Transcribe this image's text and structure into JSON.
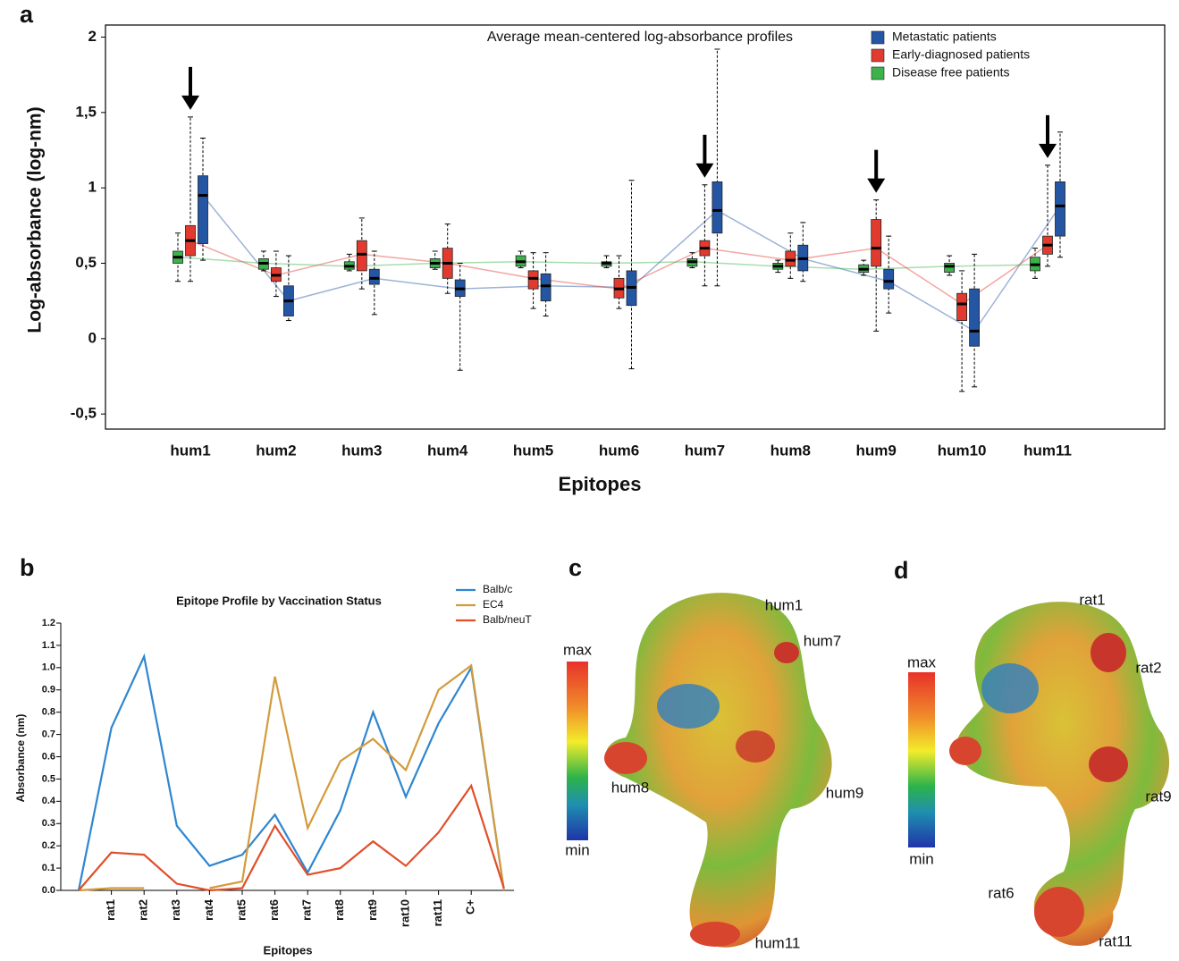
{
  "chart_data": [
    {
      "panel": "a",
      "type": "box",
      "title": "Average mean-centered log-absorbance profiles",
      "ylabel": "Log-absorbance (log-nm)",
      "xlabel": "Epitopes",
      "categories": [
        "hum1",
        "hum2",
        "hum3",
        "hum4",
        "hum5",
        "hum6",
        "hum7",
        "hum8",
        "hum9",
        "hum10",
        "hum11"
      ],
      "series": [
        {
          "name": "Metastatic patients",
          "color": "#2456a4",
          "values": [
            [
              0.52,
              0.63,
              0.95,
              1.08,
              1.33
            ],
            [
              0.12,
              0.15,
              0.25,
              0.35,
              0.55
            ],
            [
              0.16,
              0.36,
              0.4,
              0.46,
              0.58
            ],
            [
              -0.21,
              0.28,
              0.33,
              0.39,
              0.5
            ],
            [
              0.15,
              0.25,
              0.35,
              0.43,
              0.57
            ],
            [
              -0.2,
              0.22,
              0.34,
              0.45,
              1.05
            ],
            [
              0.35,
              0.7,
              0.85,
              1.04,
              1.92
            ],
            [
              0.38,
              0.45,
              0.53,
              0.62,
              0.77
            ],
            [
              0.17,
              0.33,
              0.38,
              0.46,
              0.68
            ],
            [
              -0.32,
              -0.05,
              0.05,
              0.33,
              0.56
            ],
            [
              0.54,
              0.68,
              0.88,
              1.04,
              1.37
            ]
          ]
        },
        {
          "name": "Early-diagnosed patients",
          "color": "#e23a2e",
          "values": [
            [
              0.38,
              0.55,
              0.65,
              0.75,
              1.47
            ],
            [
              0.28,
              0.38,
              0.42,
              0.47,
              0.58
            ],
            [
              0.33,
              0.45,
              0.56,
              0.65,
              0.8
            ],
            [
              0.3,
              0.4,
              0.5,
              0.6,
              0.76
            ],
            [
              0.2,
              0.33,
              0.4,
              0.45,
              0.57
            ],
            [
              0.2,
              0.27,
              0.33,
              0.4,
              0.55
            ],
            [
              0.35,
              0.55,
              0.6,
              0.65,
              1.02
            ],
            [
              0.4,
              0.48,
              0.52,
              0.58,
              0.7
            ],
            [
              0.05,
              0.48,
              0.6,
              0.79,
              0.92
            ],
            [
              -0.35,
              0.12,
              0.23,
              0.3,
              0.45
            ],
            [
              0.48,
              0.56,
              0.62,
              0.68,
              1.15
            ]
          ]
        },
        {
          "name": "Disease free patients",
          "color": "#3bb34a",
          "values": [
            [
              0.38,
              0.5,
              0.54,
              0.58,
              0.7
            ],
            [
              0.45,
              0.46,
              0.5,
              0.53,
              0.58
            ],
            [
              0.45,
              0.46,
              0.48,
              0.51,
              0.56
            ],
            [
              0.46,
              0.47,
              0.5,
              0.53,
              0.58
            ],
            [
              0.47,
              0.48,
              0.51,
              0.55,
              0.58
            ],
            [
              0.47,
              0.48,
              0.5,
              0.51,
              0.55
            ],
            [
              0.47,
              0.48,
              0.51,
              0.53,
              0.57
            ],
            [
              0.44,
              0.46,
              0.48,
              0.5,
              0.52
            ],
            [
              0.42,
              0.44,
              0.46,
              0.49,
              0.52
            ],
            [
              0.42,
              0.44,
              0.48,
              0.5,
              0.55
            ],
            [
              0.4,
              0.45,
              0.49,
              0.54,
              0.6
            ]
          ]
        }
      ],
      "arrows": [
        0,
        6,
        8,
        10
      ],
      "ylim": [
        -0.6,
        2.08
      ],
      "yticks": [
        {
          "value": -0.5,
          "label": "-0,5"
        },
        0,
        {
          "value": 0.5,
          "label": "0,5"
        },
        1,
        {
          "value": 1.5,
          "label": "1,5"
        },
        2
      ],
      "legend": "top-right"
    },
    {
      "panel": "b",
      "type": "line",
      "title": "Epitope Profile by Vaccination Status",
      "ylabel": "Absorbance (nm)",
      "xlabel": "Epitopes",
      "categories": [
        null,
        "rat1",
        "rat2",
        "rat3",
        "rat4",
        "rat5",
        "rat6",
        "rat7",
        "rat8",
        "rat9",
        "rat10",
        "rat11",
        "C+",
        null
      ],
      "series": [
        {
          "name": "Balb/c",
          "color": "#2f86d0",
          "values": [
            0,
            0.73,
            1.05,
            0.29,
            0.11,
            0.16,
            0.34,
            0.08,
            0.36,
            0.8,
            0.42,
            0.75,
            1.0,
            0
          ]
        },
        {
          "name": "EC4",
          "color": "#d39b3c",
          "values": [
            0,
            0.01,
            0.01,
            null,
            0.01,
            0.04,
            0.96,
            0.28,
            0.58,
            0.68,
            0.54,
            0.9,
            1.01,
            0
          ]
        },
        {
          "name": "Balb/neuT",
          "color": "#e04f2a",
          "values": [
            0,
            0.17,
            0.16,
            0.03,
            0,
            0.01,
            0.29,
            0.07,
            0.1,
            0.22,
            0.11,
            0.26,
            0.47,
            0.01
          ]
        }
      ],
      "ylim": [
        0,
        1.2
      ],
      "yticks": [
        {
          "value": 0,
          "label": "0.0"
        },
        {
          "value": 0.1,
          "label": "0.1"
        },
        {
          "value": 0.2,
          "label": "0.2"
        },
        {
          "value": 0.3,
          "label": "0.3"
        },
        {
          "value": 0.4,
          "label": "0.4"
        },
        {
          "value": 0.5,
          "label": "0.5"
        },
        {
          "value": 0.6,
          "label": "0.6"
        },
        {
          "value": 0.7,
          "label": "0.7"
        },
        {
          "value": 0.8,
          "label": "0.8"
        },
        {
          "value": 0.9,
          "label": "0.9"
        },
        {
          "value": 1,
          "label": "1.0"
        },
        {
          "value": 1.1,
          "label": "1.1"
        },
        {
          "value": 1.2,
          "label": "1.2"
        }
      ],
      "legend": "top-right"
    }
  ],
  "structures": [
    {
      "panel": "c",
      "scale_max": "max",
      "scale_min": "min",
      "labels": [
        "hum1",
        "hum7",
        "hum8",
        "hum9",
        "hum11"
      ]
    },
    {
      "panel": "d",
      "scale_max": "max",
      "scale_min": "min",
      "labels": [
        "rat1",
        "rat2",
        "rat9",
        "rat6",
        "rat11"
      ]
    }
  ]
}
